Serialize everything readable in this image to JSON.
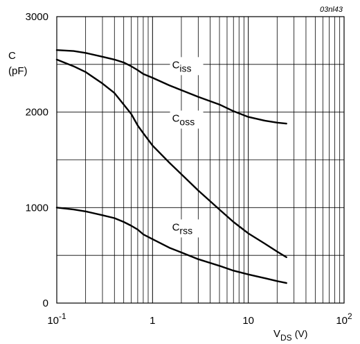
{
  "chart_data": {
    "type": "line",
    "doc_code": "03nl43",
    "x_scale": "log",
    "xlim": [
      0.1,
      100
    ],
    "ylim": [
      0,
      3000
    ],
    "ylabel": {
      "main": "C",
      "unit": "(pF)"
    },
    "xlabel": {
      "main": "V",
      "sub": "DS",
      "unit": "(V)"
    },
    "y_ticks": [
      {
        "value": 0,
        "label": "0"
      },
      {
        "value": 1000,
        "label": "1000"
      },
      {
        "value": 2000,
        "label": "2000"
      },
      {
        "value": 3000,
        "label": "3000"
      }
    ],
    "y_grid": [
      0,
      500,
      1000,
      1500,
      2000,
      2500,
      3000
    ],
    "x_ticks": [
      {
        "value": 0.1,
        "base": "10",
        "exp": "-1"
      },
      {
        "value": 1,
        "base": "1",
        "exp": ""
      },
      {
        "value": 10,
        "base": "10",
        "exp": ""
      },
      {
        "value": 100,
        "base": "10",
        "exp": "2"
      }
    ],
    "grid": true,
    "series": [
      {
        "name": "Ciss",
        "label_main": "C",
        "label_sub": "iss",
        "label_at": {
          "x": 1.6,
          "y": 2460
        },
        "x": [
          0.1,
          0.15,
          0.2,
          0.3,
          0.4,
          0.5,
          0.6,
          0.7,
          0.8,
          1,
          1.5,
          2,
          3,
          5,
          7,
          10,
          15,
          20,
          25
        ],
        "y": [
          2650,
          2640,
          2620,
          2580,
          2550,
          2520,
          2480,
          2440,
          2400,
          2360,
          2280,
          2230,
          2160,
          2080,
          2010,
          1950,
          1910,
          1890,
          1880
        ]
      },
      {
        "name": "Coss",
        "label_main": "C",
        "label_sub": "oss",
        "label_at": {
          "x": 1.6,
          "y": 1900
        },
        "x": [
          0.1,
          0.15,
          0.2,
          0.3,
          0.4,
          0.5,
          0.6,
          0.7,
          0.8,
          1,
          1.5,
          2,
          3,
          5,
          7,
          10,
          15,
          20,
          25
        ],
        "y": [
          2550,
          2480,
          2420,
          2300,
          2200,
          2080,
          1980,
          1860,
          1780,
          1650,
          1470,
          1350,
          1180,
          980,
          850,
          730,
          620,
          540,
          480
        ]
      },
      {
        "name": "Crss",
        "label_main": "C",
        "label_sub": "rss",
        "label_at": {
          "x": 1.6,
          "y": 760
        },
        "x": [
          0.1,
          0.15,
          0.2,
          0.3,
          0.4,
          0.5,
          0.6,
          0.7,
          0.8,
          1,
          1.5,
          2,
          3,
          5,
          7,
          10,
          15,
          20,
          25
        ],
        "y": [
          1000,
          980,
          960,
          920,
          890,
          850,
          810,
          770,
          720,
          670,
          580,
          530,
          460,
          390,
          340,
          300,
          260,
          230,
          210
        ]
      }
    ]
  }
}
